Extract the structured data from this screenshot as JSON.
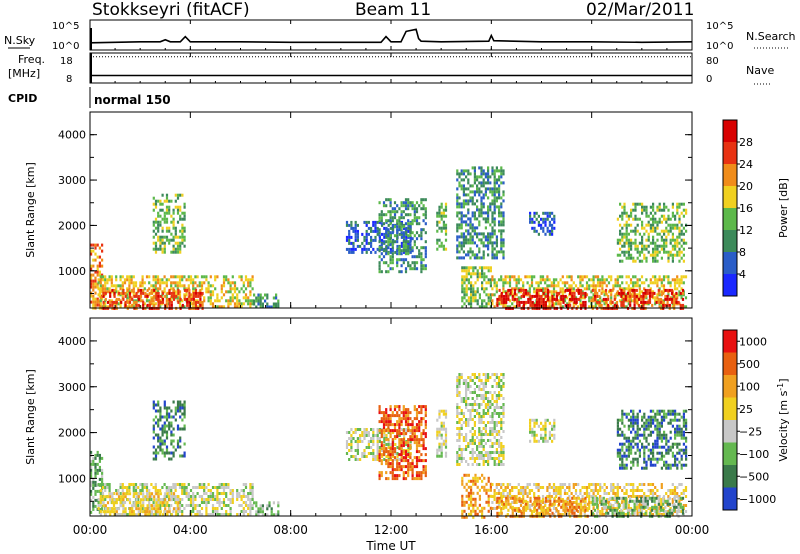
{
  "header": {
    "station": "Stokkseyri (fitACF)",
    "beam": "Beam 11",
    "date": "02/Mar/2011"
  },
  "colors": {
    "power_scale": [
      "#1a28ff",
      "#2a5dc8",
      "#3c8a5a",
      "#5cb84a",
      "#f0d020",
      "#f08c1a",
      "#e83212",
      "#d80000"
    ],
    "velocity_scale": [
      "#2244cc",
      "#3a7a4a",
      "#64b850",
      "#c8c8c8",
      "#f0d020",
      "#f0a020",
      "#e86010",
      "#e81010"
    ]
  },
  "chart_data": [
    {
      "type": "line",
      "panel": "noise",
      "left_label": "N.Sky",
      "right_label": "N.Search",
      "yticks_left": [
        "10^5",
        "10^0"
      ],
      "yticks_right": [
        "10^5",
        "10^0"
      ],
      "x": [
        0,
        1,
        2,
        2.8,
        3.0,
        3.2,
        3.6,
        3.8,
        4,
        6,
        8,
        10,
        11.6,
        11.8,
        12,
        12.4,
        12.6,
        13.0,
        13.1,
        13.2,
        14,
        15.9,
        16.0,
        16.1,
        18,
        20,
        22,
        24
      ],
      "y": [
        1.0,
        1.1,
        1.2,
        1.2,
        1.6,
        1.2,
        1.2,
        2.2,
        1.2,
        1.2,
        1.1,
        1.1,
        1.1,
        2.2,
        1.2,
        1.2,
        3.2,
        3.6,
        1.8,
        1.3,
        1.2,
        1.3,
        2.4,
        1.4,
        1.2,
        1.2,
        1.1,
        1.2
      ]
    },
    {
      "type": "line",
      "panel": "frequency",
      "left_label": "Freq.",
      "left_unit": "[MHz]",
      "right_label": "Nave",
      "yticks_left": [
        "18",
        "8"
      ],
      "yticks_right": [
        "80",
        "0"
      ],
      "frequency_mhz": 10.5,
      "nave": 70
    },
    {
      "type": "table",
      "panel": "cpid",
      "label": "CPID",
      "segments": [
        {
          "start": 0,
          "end": 24,
          "name": "normal 150"
        }
      ]
    },
    {
      "type": "heatmap",
      "panel": "power",
      "ylabel": "Slant Range [km]",
      "colorbar_label": "Power [dB]",
      "colorbar_ticks": [
        "4",
        "8",
        "12",
        "16",
        "20",
        "24",
        "28"
      ],
      "yticks": [
        "1000",
        "2000",
        "3000",
        "4000"
      ],
      "ylim": [
        180,
        4500
      ],
      "xlim": [
        0,
        24
      ],
      "blobs": [
        {
          "t": [
            0.0,
            0.5
          ],
          "r": [
            180,
            1600
          ],
          "lvl": 5
        },
        {
          "t": [
            0.3,
            6.5
          ],
          "r": [
            200,
            900
          ],
          "lvl": 4
        },
        {
          "t": [
            0.5,
            4.5
          ],
          "r": [
            200,
            600
          ],
          "lvl": 6
        },
        {
          "t": [
            2.5,
            3.8
          ],
          "r": [
            1400,
            2700
          ],
          "lvl": 3
        },
        {
          "t": [
            6.5,
            7.5
          ],
          "r": [
            180,
            500
          ],
          "lvl": 2
        },
        {
          "t": [
            10.2,
            12.8
          ],
          "r": [
            1400,
            2100
          ],
          "lvl": 1
        },
        {
          "t": [
            11.5,
            13.4
          ],
          "r": [
            1000,
            2600
          ],
          "lvl": 2
        },
        {
          "t": [
            13.8,
            14.2
          ],
          "r": [
            1500,
            2500
          ],
          "lvl": 3
        },
        {
          "t": [
            14.6,
            16.5
          ],
          "r": [
            1300,
            3300
          ],
          "lvl": 2
        },
        {
          "t": [
            14.8,
            16.0
          ],
          "r": [
            180,
            1100
          ],
          "lvl": 3
        },
        {
          "t": [
            16.0,
            23.8
          ],
          "r": [
            200,
            900
          ],
          "lvl": 4
        },
        {
          "t": [
            16.2,
            19.8
          ],
          "r": [
            200,
            600
          ],
          "lvl": 7
        },
        {
          "t": [
            20.0,
            23.6
          ],
          "r": [
            200,
            600
          ],
          "lvl": 6
        },
        {
          "t": [
            17.5,
            18.5
          ],
          "r": [
            1800,
            2300
          ],
          "lvl": 1
        },
        {
          "t": [
            21.0,
            23.8
          ],
          "r": [
            1200,
            2500
          ],
          "lvl": 3
        }
      ]
    },
    {
      "type": "heatmap",
      "panel": "velocity",
      "ylabel": "Slant Range [km]",
      "colorbar_label": "Velocity [m s",
      "colorbar_label_sup": "-1",
      "colorbar_label_end": "]",
      "colorbar_ticks": [
        "1000",
        "500",
        "100",
        "25",
        "−25",
        "−100",
        "−500",
        "−1000"
      ],
      "yticks": [
        "1000",
        "2000",
        "3000",
        "4000"
      ],
      "ylim": [
        180,
        4500
      ],
      "xlim": [
        0,
        24
      ],
      "blobs": [
        {
          "t": [
            0.0,
            0.5
          ],
          "r": [
            180,
            1600
          ],
          "lvl": 2
        },
        {
          "t": [
            0.3,
            6.5
          ],
          "r": [
            200,
            900
          ],
          "lvl": 3
        },
        {
          "t": [
            0.5,
            3.5
          ],
          "r": [
            200,
            700
          ],
          "lvl": 4
        },
        {
          "t": [
            2.5,
            3.8
          ],
          "r": [
            1400,
            2700
          ],
          "lvl": 1
        },
        {
          "t": [
            6.5,
            7.5
          ],
          "r": [
            180,
            500
          ],
          "lvl": 2
        },
        {
          "t": [
            10.2,
            12.8
          ],
          "r": [
            1400,
            2100
          ],
          "lvl": 3
        },
        {
          "t": [
            11.5,
            13.4
          ],
          "r": [
            1000,
            2600
          ],
          "lvl": 6
        },
        {
          "t": [
            13.8,
            14.2
          ],
          "r": [
            1500,
            2500
          ],
          "lvl": 3
        },
        {
          "t": [
            14.6,
            16.5
          ],
          "r": [
            1300,
            3300
          ],
          "lvl": 3
        },
        {
          "t": [
            14.8,
            16.0
          ],
          "r": [
            180,
            1100
          ],
          "lvl": 5
        },
        {
          "t": [
            16.0,
            23.8
          ],
          "r": [
            200,
            900
          ],
          "lvl": 4
        },
        {
          "t": [
            16.2,
            19.8
          ],
          "r": [
            200,
            600
          ],
          "lvl": 5
        },
        {
          "t": [
            20.0,
            23.6
          ],
          "r": [
            200,
            600
          ],
          "lvl": 2
        },
        {
          "t": [
            17.5,
            18.5
          ],
          "r": [
            1800,
            2300
          ],
          "lvl": 3
        },
        {
          "t": [
            21.0,
            23.8
          ],
          "r": [
            1200,
            2500
          ],
          "lvl": 1
        }
      ]
    }
  ],
  "xaxis": {
    "ticks": [
      "00:00",
      "04:00",
      "08:00",
      "12:00",
      "16:00",
      "20:00",
      "00:00"
    ],
    "label": "Time UT"
  }
}
